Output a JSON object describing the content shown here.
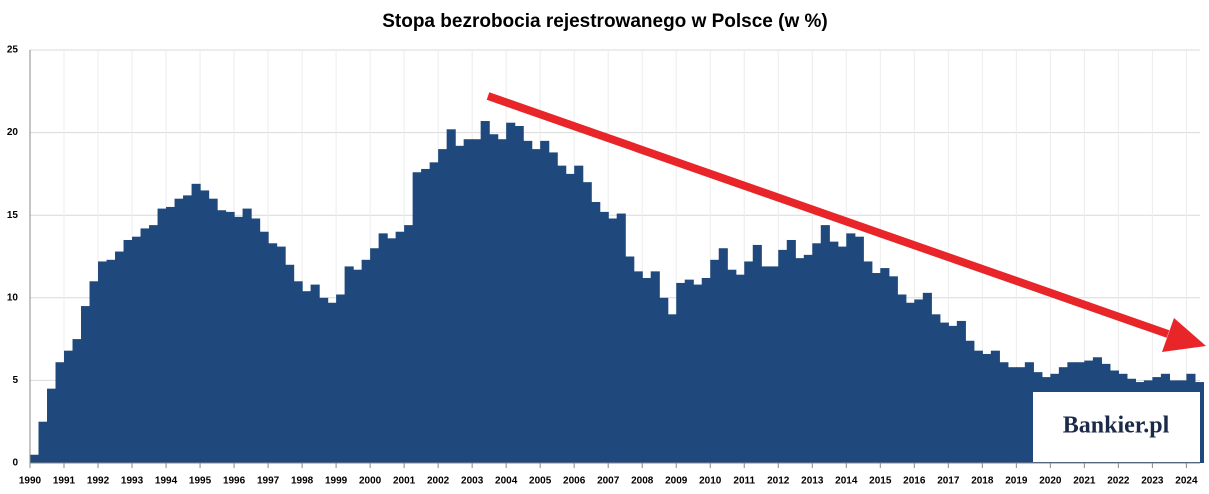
{
  "chart_data": {
    "type": "bar",
    "title": "Stopa bezrobocia rejestrowanego w Polsce (w %)",
    "watermark": "Bankier.pl",
    "color": "#1f497d",
    "grid": true,
    "xlim": [
      1990,
      2024.4
    ],
    "ylim": [
      0,
      25
    ],
    "yticks": [
      0,
      5,
      10,
      15,
      20,
      25
    ],
    "xticks": [
      1990,
      1991,
      1992,
      1993,
      1994,
      1995,
      1996,
      1997,
      1998,
      1999,
      2000,
      2001,
      2002,
      2003,
      2004,
      2005,
      2006,
      2007,
      2008,
      2009,
      2010,
      2011,
      2012,
      2013,
      2014,
      2015,
      2016,
      2017,
      2018,
      2019,
      2020,
      2021,
      2022,
      2023,
      2024
    ],
    "x": [
      1990,
      1990.25,
      1990.5,
      1990.75,
      1991,
      1991.25,
      1991.5,
      1991.75,
      1992,
      1992.25,
      1992.5,
      1992.75,
      1993,
      1993.25,
      1993.5,
      1993.75,
      1994,
      1994.25,
      1994.5,
      1994.75,
      1995,
      1995.25,
      1995.5,
      1995.75,
      1996,
      1996.25,
      1996.5,
      1996.75,
      1997,
      1997.25,
      1997.5,
      1997.75,
      1998,
      1998.25,
      1998.5,
      1998.75,
      1999,
      1999.25,
      1999.5,
      1999.75,
      2000,
      2000.25,
      2000.5,
      2000.75,
      2001,
      2001.25,
      2001.5,
      2001.75,
      2002,
      2002.25,
      2002.5,
      2002.75,
      2003,
      2003.25,
      2003.5,
      2003.75,
      2004,
      2004.25,
      2004.5,
      2004.75,
      2005,
      2005.25,
      2005.5,
      2005.75,
      2006,
      2006.25,
      2006.5,
      2006.75,
      2007,
      2007.25,
      2007.5,
      2007.75,
      2008,
      2008.25,
      2008.5,
      2008.75,
      2009,
      2009.25,
      2009.5,
      2009.75,
      2010,
      2010.25,
      2010.5,
      2010.75,
      2011,
      2011.25,
      2011.5,
      2011.75,
      2012,
      2012.25,
      2012.5,
      2012.75,
      2013,
      2013.25,
      2013.5,
      2013.75,
      2014,
      2014.25,
      2014.5,
      2014.75,
      2015,
      2015.25,
      2015.5,
      2015.75,
      2016,
      2016.25,
      2016.5,
      2016.75,
      2017,
      2017.25,
      2017.5,
      2017.75,
      2018,
      2018.25,
      2018.5,
      2018.75,
      2019,
      2019.25,
      2019.5,
      2019.75,
      2020,
      2020.25,
      2020.5,
      2020.75,
      2021,
      2021.25,
      2021.5,
      2021.75,
      2022,
      2022.25,
      2022.5,
      2022.75,
      2023,
      2023.25,
      2023.5,
      2023.75,
      2024,
      2024.25
    ],
    "values": [
      0.5,
      2.5,
      4.5,
      6.1,
      6.8,
      7.5,
      9.5,
      11.0,
      12.2,
      12.3,
      12.8,
      13.5,
      13.7,
      14.2,
      14.4,
      15.4,
      15.5,
      16.0,
      16.2,
      16.9,
      16.5,
      16.0,
      15.3,
      15.2,
      14.9,
      15.4,
      14.8,
      14.0,
      13.3,
      13.1,
      12.0,
      11.0,
      10.4,
      10.8,
      10.0,
      9.7,
      10.2,
      11.9,
      11.7,
      12.3,
      13.0,
      13.9,
      13.6,
      14.0,
      14.4,
      17.6,
      17.8,
      18.2,
      19.0,
      20.2,
      19.2,
      19.6,
      19.6,
      20.7,
      19.9,
      19.6,
      20.6,
      20.4,
      19.5,
      19.0,
      19.5,
      18.8,
      18.0,
      17.5,
      18.0,
      17.0,
      15.8,
      15.2,
      14.8,
      15.1,
      12.5,
      11.6,
      11.2,
      11.6,
      10.0,
      9.0,
      10.9,
      11.1,
      10.8,
      11.2,
      12.3,
      13.0,
      11.7,
      11.4,
      12.2,
      13.2,
      11.9,
      11.9,
      12.9,
      13.5,
      12.4,
      12.6,
      13.3,
      14.4,
      13.4,
      13.1,
      13.9,
      13.7,
      12.2,
      11.5,
      11.8,
      11.3,
      10.2,
      9.7,
      9.9,
      10.3,
      9.0,
      8.5,
      8.3,
      8.6,
      7.4,
      6.8,
      6.6,
      6.8,
      6.1,
      5.8,
      5.8,
      6.1,
      5.5,
      5.2,
      5.4,
      5.8,
      6.1,
      6.1,
      6.2,
      6.4,
      6.0,
      5.6,
      5.4,
      5.1,
      4.9,
      5.0,
      5.2,
      5.4,
      5.0,
      5.0,
      5.4,
      4.9
    ]
  }
}
